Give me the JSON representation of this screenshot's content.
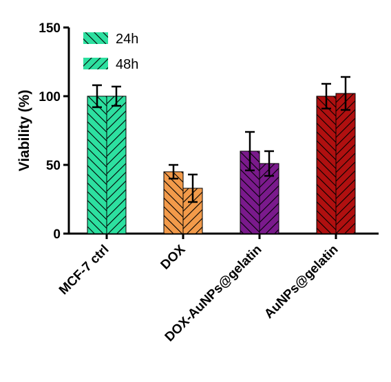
{
  "chart_data": {
    "type": "bar",
    "title": "",
    "xlabel": "",
    "ylabel": "Viability (%)",
    "ylim": [
      0,
      150
    ],
    "yticks": [
      "0",
      "50",
      "100",
      "150"
    ],
    "grid": false,
    "legend_position": "top-left",
    "categories": [
      "MCF-7 ctrl",
      "DOX",
      "DOX-AuNPs@gelatin",
      "AuNPs@gelatin"
    ],
    "category_colors": [
      "#2de0a0",
      "#f29a4a",
      "#7a1a8c",
      "#b01010"
    ],
    "series": [
      {
        "name": "24h",
        "hatch": "backslash",
        "values": [
          100,
          45,
          60,
          100
        ],
        "errors": [
          8,
          5,
          14,
          9
        ]
      },
      {
        "name": "48h",
        "hatch": "slash",
        "values": [
          100,
          33,
          51,
          102
        ],
        "errors": [
          7,
          10,
          9,
          12
        ]
      }
    ],
    "legend_color": "#2de0a0"
  }
}
